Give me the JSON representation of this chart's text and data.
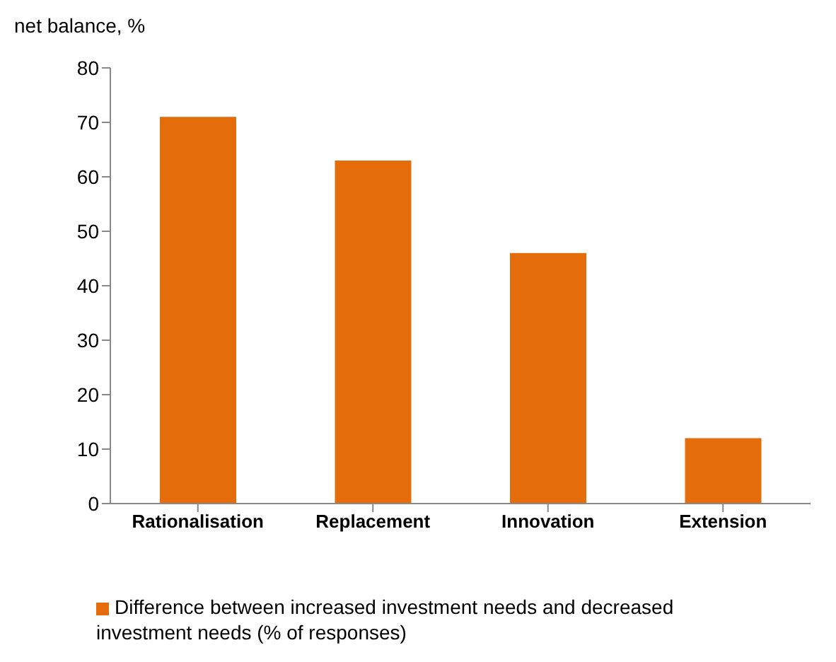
{
  "chart_data": {
    "type": "bar",
    "ylabel": "net balance, %",
    "categories": [
      "Rationalisation",
      "Replacement",
      "Innovation",
      "Extension"
    ],
    "series": [
      {
        "name": "Difference between increased investment needs and decreased investment needs (% of responses)",
        "color": "#e46c0a",
        "values": [
          71,
          63,
          46,
          12
        ]
      }
    ],
    "ylim": [
      0,
      80
    ],
    "yticks": [
      0,
      10,
      20,
      30,
      40,
      50,
      60,
      70,
      80
    ],
    "grid": false,
    "legend": "bottom"
  }
}
